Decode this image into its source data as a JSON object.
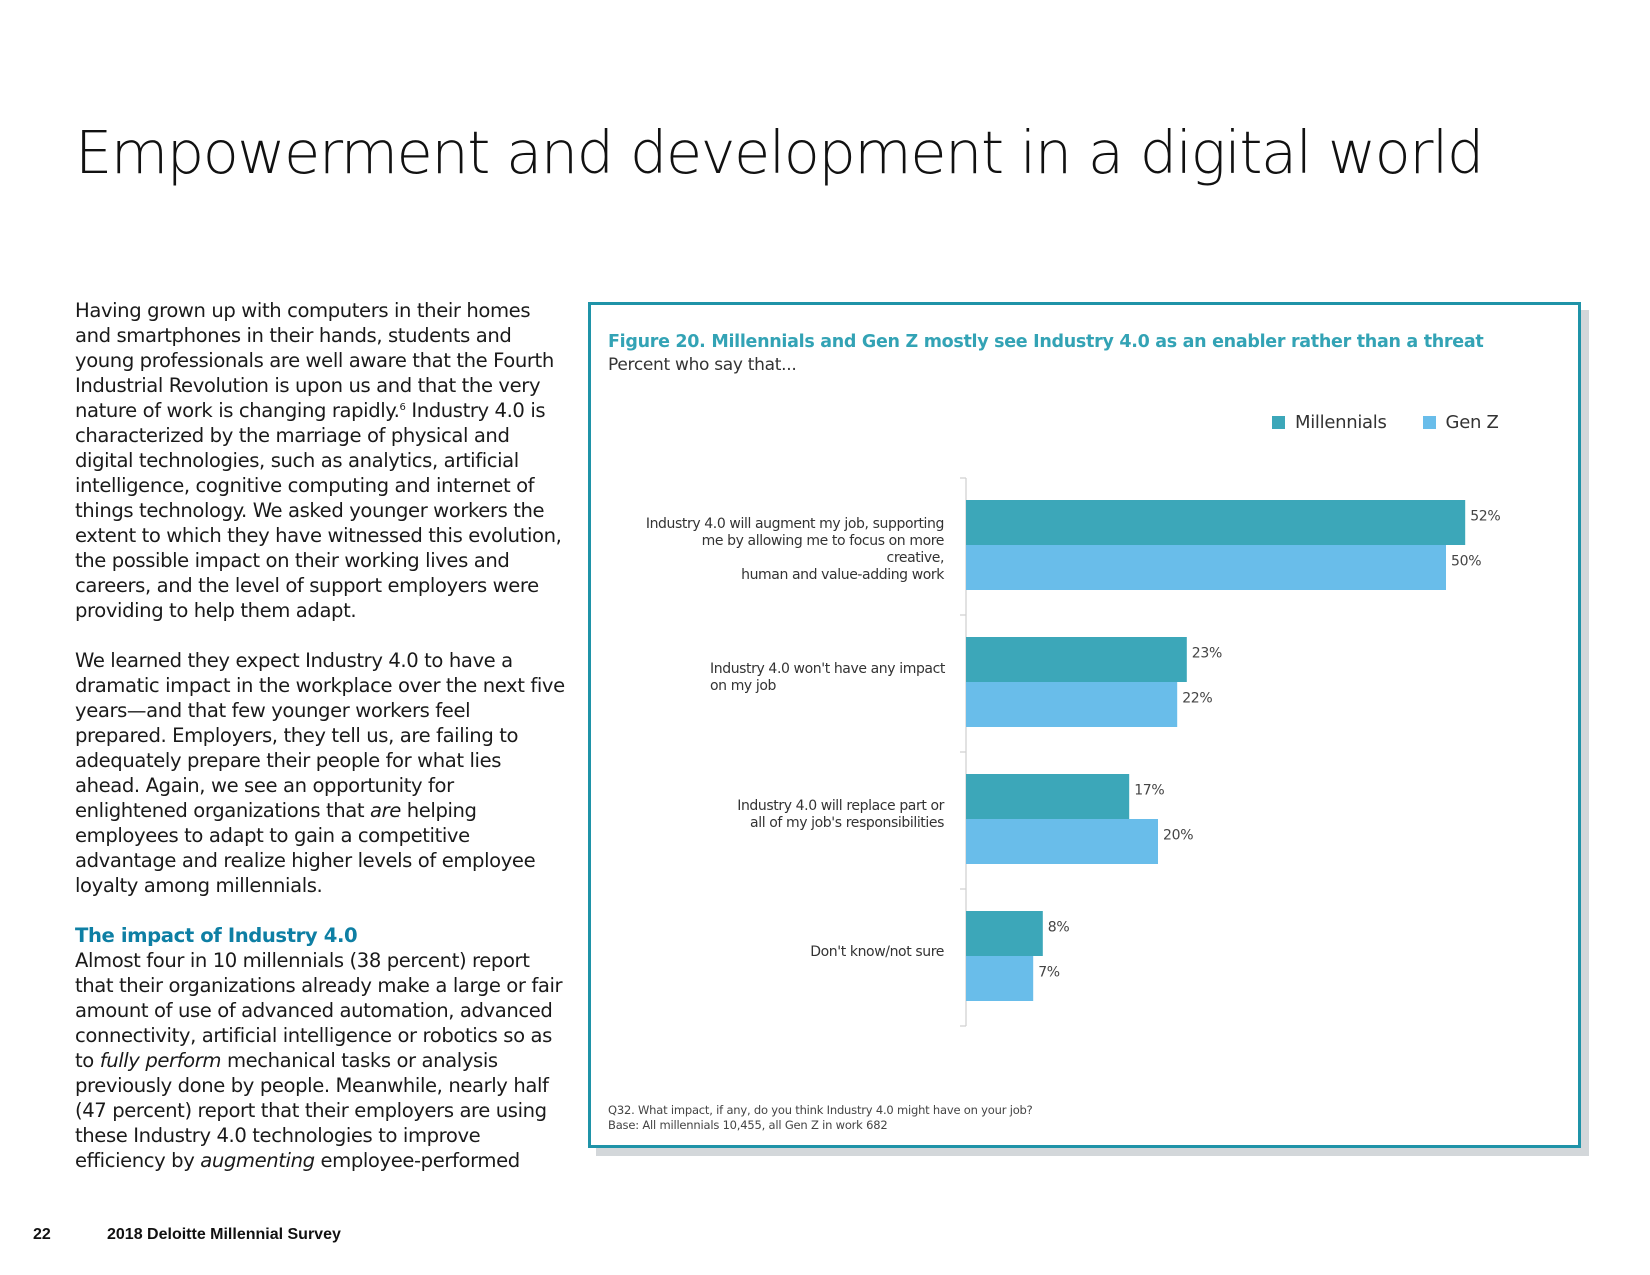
{
  "page": {
    "title": "Empowerment and development in a digital world",
    "footer_page_number": "22",
    "footer_title": "2018 Deloitte Millennial Survey"
  },
  "body": {
    "para1_a": "Having grown up with computers in their homes and smartphones in their hands, students and young professionals are well aware that the Fourth Industrial Revolution is upon us and that the very nature of work is changing rapidly.",
    "para1_footnote": "6",
    "para1_b": " Industry 4.0 is characterized by the marriage of physical and digital technologies, such as analytics, artificial intelligence, cognitive computing and internet of things technology. We asked younger workers the extent to which they have witnessed this evolution, the possible impact on their working lives and careers, and the level of support employers were providing to help them adapt.",
    "para2_a": "We learned they expect Industry 4.0 to have a dramatic impact in the workplace over the next five years—and that few younger workers feel prepared. Employers, they tell us, are failing to adequately prepare their people for what lies ahead. Again, we see an opportunity for enlightened organizations that ",
    "para2_em": "are",
    "para2_b": " helping employees to adapt to gain a competitive advantage and realize higher levels of employee loyalty among millennials.",
    "section_heading": "The impact of Industry 4.0",
    "para3_a": "Almost four in 10 millennials (38 percent) report that their organizations already make a large or fair amount of use of advanced automation, advanced connectivity, artificial intelligence or robotics so as to ",
    "para3_em1": "fully perform",
    "para3_b": " mechanical tasks or analysis previously done by people. Meanwhile, nearly half (47 percent) report that their employers are using these Industry 4.0 technologies to improve efficiency by ",
    "para3_em2": "augmenting",
    "para3_c": " employee-performed"
  },
  "figure": {
    "title": "Figure 20. Millennials and Gen Z mostly see Industry 4.0 as an enabler rather than a threat",
    "subtitle": "Percent who say that...",
    "note_line1": "Q32. What impact, if any, do you think Industry 4.0 might have on your job?",
    "note_line2": "Base: All millennials 10,455, all Gen Z in work 682"
  },
  "chart_data": {
    "type": "bar",
    "orientation": "horizontal",
    "categories": [
      "Industry 4.0 will augment my job, supporting me by allowing me to focus on more creative, human and value-adding work",
      "Industry 4.0 won't have any impact on my job",
      "Industry 4.0 will replace part or all of my job's responsibilities",
      "Don't know/not sure"
    ],
    "category_lines": [
      [
        "Industry 4.0 will augment my job, supporting",
        "me by allowing me to focus on more creative,",
        "human and value-adding work"
      ],
      [
        "Industry 4.0 won't have any impact",
        "on my job"
      ],
      [
        "Industry 4.0 will replace part or",
        "all of my job's responsibilities"
      ],
      [
        "Don't know/not sure"
      ]
    ],
    "series": [
      {
        "name": "Millennials",
        "values": [
          52,
          23,
          17,
          8
        ],
        "labels": [
          "52%",
          "23%",
          "17%",
          "8%"
        ],
        "color": "#3ca7b9"
      },
      {
        "name": "Gen Z",
        "values": [
          50,
          22,
          20,
          7
        ],
        "labels": [
          "50%",
          "22%",
          "20%",
          "7%"
        ],
        "color": "#69bdea"
      }
    ],
    "unit": "%",
    "xlim": [
      0,
      60
    ],
    "grid": false,
    "legend_position": "top-right"
  }
}
